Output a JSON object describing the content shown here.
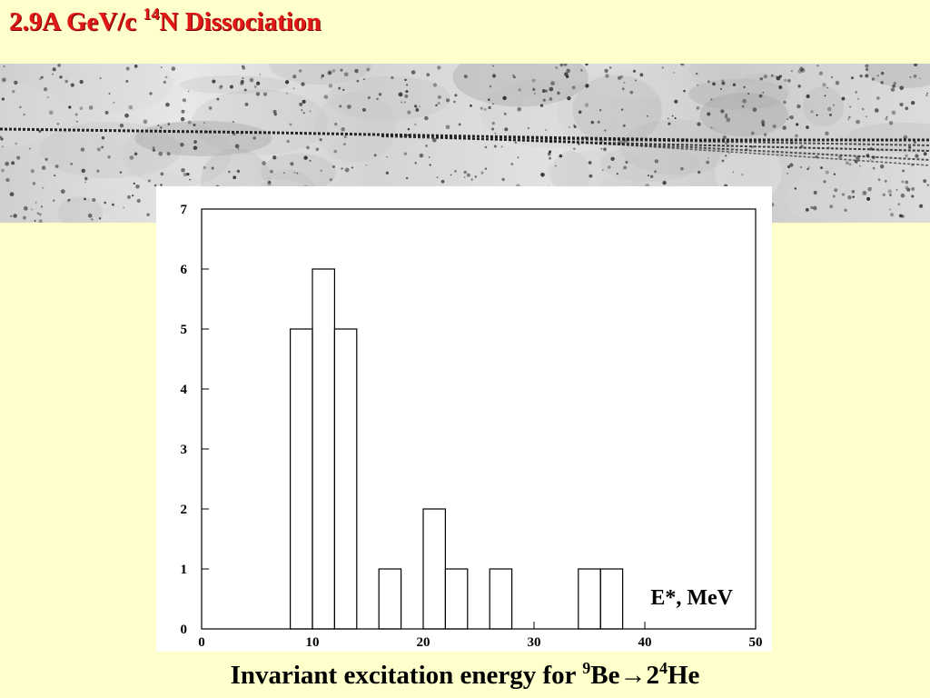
{
  "slide": {
    "title_prefix": "2.9A GeV/c ",
    "title_isotope_mass": "14",
    "title_suffix": "N Dissociation",
    "caption_prefix": "Invariant excitation energy for ",
    "caption_mass_1": "9",
    "caption_element_1": "Be",
    "caption_arrow": "→",
    "caption_multiplicity": "2",
    "caption_mass_2": "4",
    "caption_element_2": "He"
  },
  "photo": {
    "description_icon": "emulsion-track-photo"
  },
  "colors": {
    "background": "#ffffcc",
    "title": "#e01818",
    "chart_line": "#000000",
    "chart_bg": "#ffffff"
  },
  "chart_data": {
    "type": "bar",
    "style": "step-histogram",
    "title": "",
    "xlabel": "E*, MeV",
    "ylabel": "",
    "xlim": [
      0,
      50
    ],
    "ylim": [
      0,
      7
    ],
    "x_ticks": [
      0,
      10,
      20,
      30,
      40,
      50
    ],
    "y_ticks": [
      0,
      1,
      2,
      3,
      4,
      5,
      6,
      7
    ],
    "bin_width": 2,
    "bins": [
      {
        "x0": 8,
        "x1": 10,
        "count": 5
      },
      {
        "x0": 10,
        "x1": 12,
        "count": 6
      },
      {
        "x0": 12,
        "x1": 14,
        "count": 5
      },
      {
        "x0": 16,
        "x1": 18,
        "count": 1
      },
      {
        "x0": 20,
        "x1": 22,
        "count": 2
      },
      {
        "x0": 22,
        "x1": 24,
        "count": 1
      },
      {
        "x0": 26,
        "x1": 28,
        "count": 1
      },
      {
        "x0": 34,
        "x1": 36,
        "count": 1
      },
      {
        "x0": 36,
        "x1": 38,
        "count": 1
      }
    ],
    "grid": false
  }
}
